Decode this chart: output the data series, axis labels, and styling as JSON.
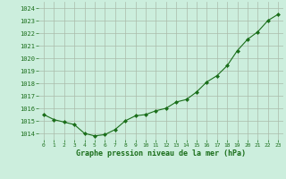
{
  "x": [
    0,
    1,
    2,
    3,
    4,
    5,
    6,
    7,
    8,
    9,
    10,
    11,
    12,
    13,
    14,
    15,
    16,
    17,
    18,
    19,
    20,
    21,
    22,
    23
  ],
  "y": [
    1015.5,
    1015.1,
    1014.9,
    1014.7,
    1014.0,
    1013.8,
    1013.9,
    1014.3,
    1015.0,
    1015.4,
    1015.5,
    1015.8,
    1016.0,
    1016.5,
    1016.7,
    1017.3,
    1018.1,
    1018.6,
    1019.4,
    1020.6,
    1021.5,
    1022.1,
    1023.0,
    1023.5
  ],
  "line_color": "#1a6e1a",
  "marker": "D",
  "marker_size": 2.0,
  "bg_color": "#cceedd",
  "grid_color": "#aabbaa",
  "xlabel": "Graphe pression niveau de la mer (hPa)",
  "xlabel_color": "#1a6e1a",
  "tick_color": "#1a6e1a",
  "ylim": [
    1013.5,
    1024.5
  ],
  "yticks": [
    1014,
    1015,
    1016,
    1017,
    1018,
    1019,
    1020,
    1021,
    1022,
    1023,
    1024
  ],
  "xlim": [
    -0.5,
    23.5
  ],
  "xticks": [
    0,
    1,
    2,
    3,
    4,
    5,
    6,
    7,
    8,
    9,
    10,
    11,
    12,
    13,
    14,
    15,
    16,
    17,
    18,
    19,
    20,
    21,
    22,
    23
  ]
}
